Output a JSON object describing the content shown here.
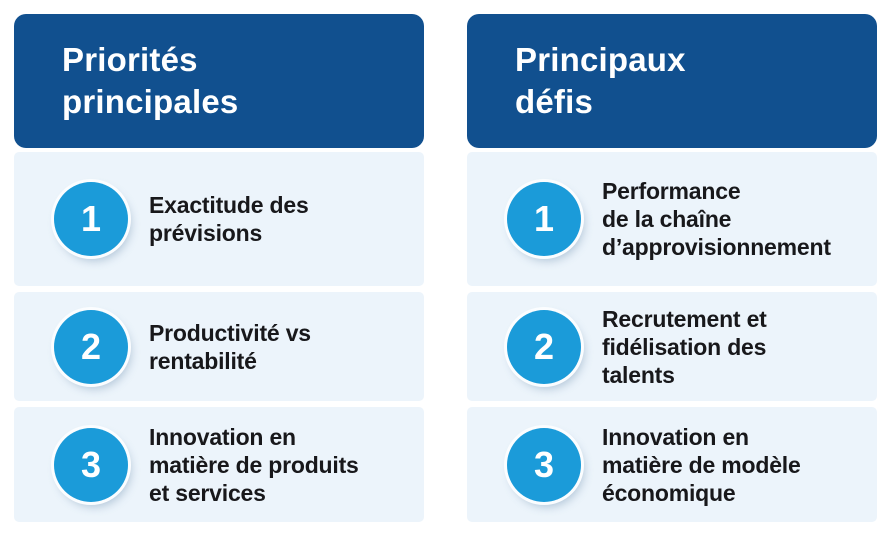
{
  "colors": {
    "header_bg": "#11508F",
    "header_text": "#FFFFFF",
    "panel_bg": "#ECF4FB",
    "badge_bg": "#1B9BD9",
    "badge_text": "#FFFFFF",
    "item_text": "#18181B",
    "page_bg": "#FFFFFF"
  },
  "columns": [
    {
      "title_lines": [
        "Priorités",
        "principales"
      ],
      "items": [
        {
          "number": "1",
          "lines": [
            "Exactitude des",
            "prévisions"
          ]
        },
        {
          "number": "2",
          "lines": [
            "Productivité vs",
            "rentabilité"
          ]
        },
        {
          "number": "3",
          "lines": [
            "Innovation en",
            "matière de produits",
            "et services"
          ]
        }
      ]
    },
    {
      "title_lines": [
        "Principaux",
        "défis"
      ],
      "items": [
        {
          "number": "1",
          "lines": [
            "Performance",
            "de la chaîne",
            "d’approvisionnement"
          ]
        },
        {
          "number": "2",
          "lines": [
            "Recrutement et",
            "fidélisation des",
            "talents"
          ]
        },
        {
          "number": "3",
          "lines": [
            "Innovation en",
            "matière de modèle",
            "économique"
          ]
        }
      ]
    }
  ]
}
